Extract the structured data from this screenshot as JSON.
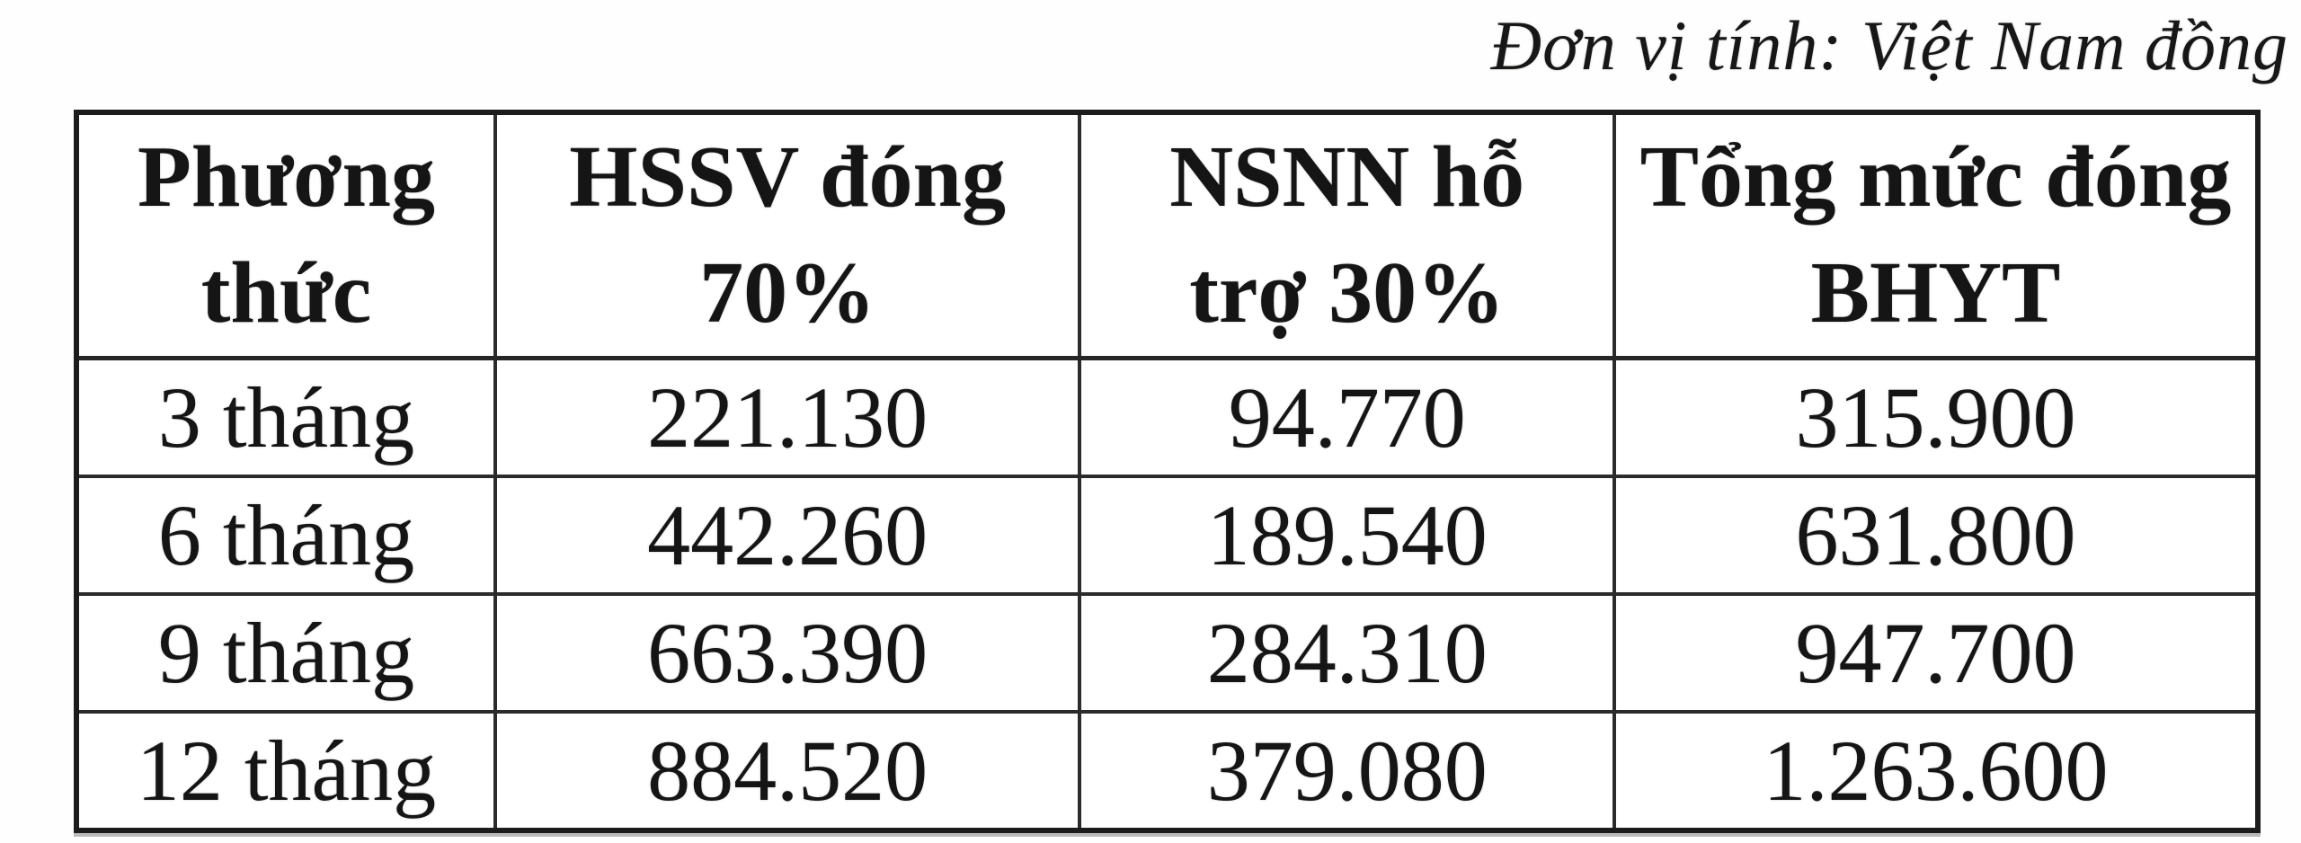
{
  "caption": "Đơn vị tính: Việt Nam đồng",
  "table": {
    "headers": [
      {
        "lines": [
          "Phương",
          "thức"
        ]
      },
      {
        "lines": [
          "HSSV đóng",
          "70%"
        ]
      },
      {
        "lines": [
          "NSNN hỗ",
          "trợ 30%"
        ]
      },
      {
        "lines": [
          "Tổng mức đóng",
          "BHYT"
        ]
      }
    ],
    "rows": [
      {
        "cells": [
          "3 tháng",
          "221.130",
          "94.770",
          "315.900"
        ]
      },
      {
        "cells": [
          "6 tháng",
          "442.260",
          "189.540",
          "631.800"
        ]
      },
      {
        "cells": [
          "9 tháng",
          "663.390",
          "284.310",
          "947.700"
        ]
      },
      {
        "cells": [
          "12 tháng",
          "884.520",
          "379.080",
          "1.263.600"
        ]
      }
    ]
  },
  "colors": {
    "background": "#ffffff",
    "text": "#151515",
    "border": "#1c1c1c"
  }
}
